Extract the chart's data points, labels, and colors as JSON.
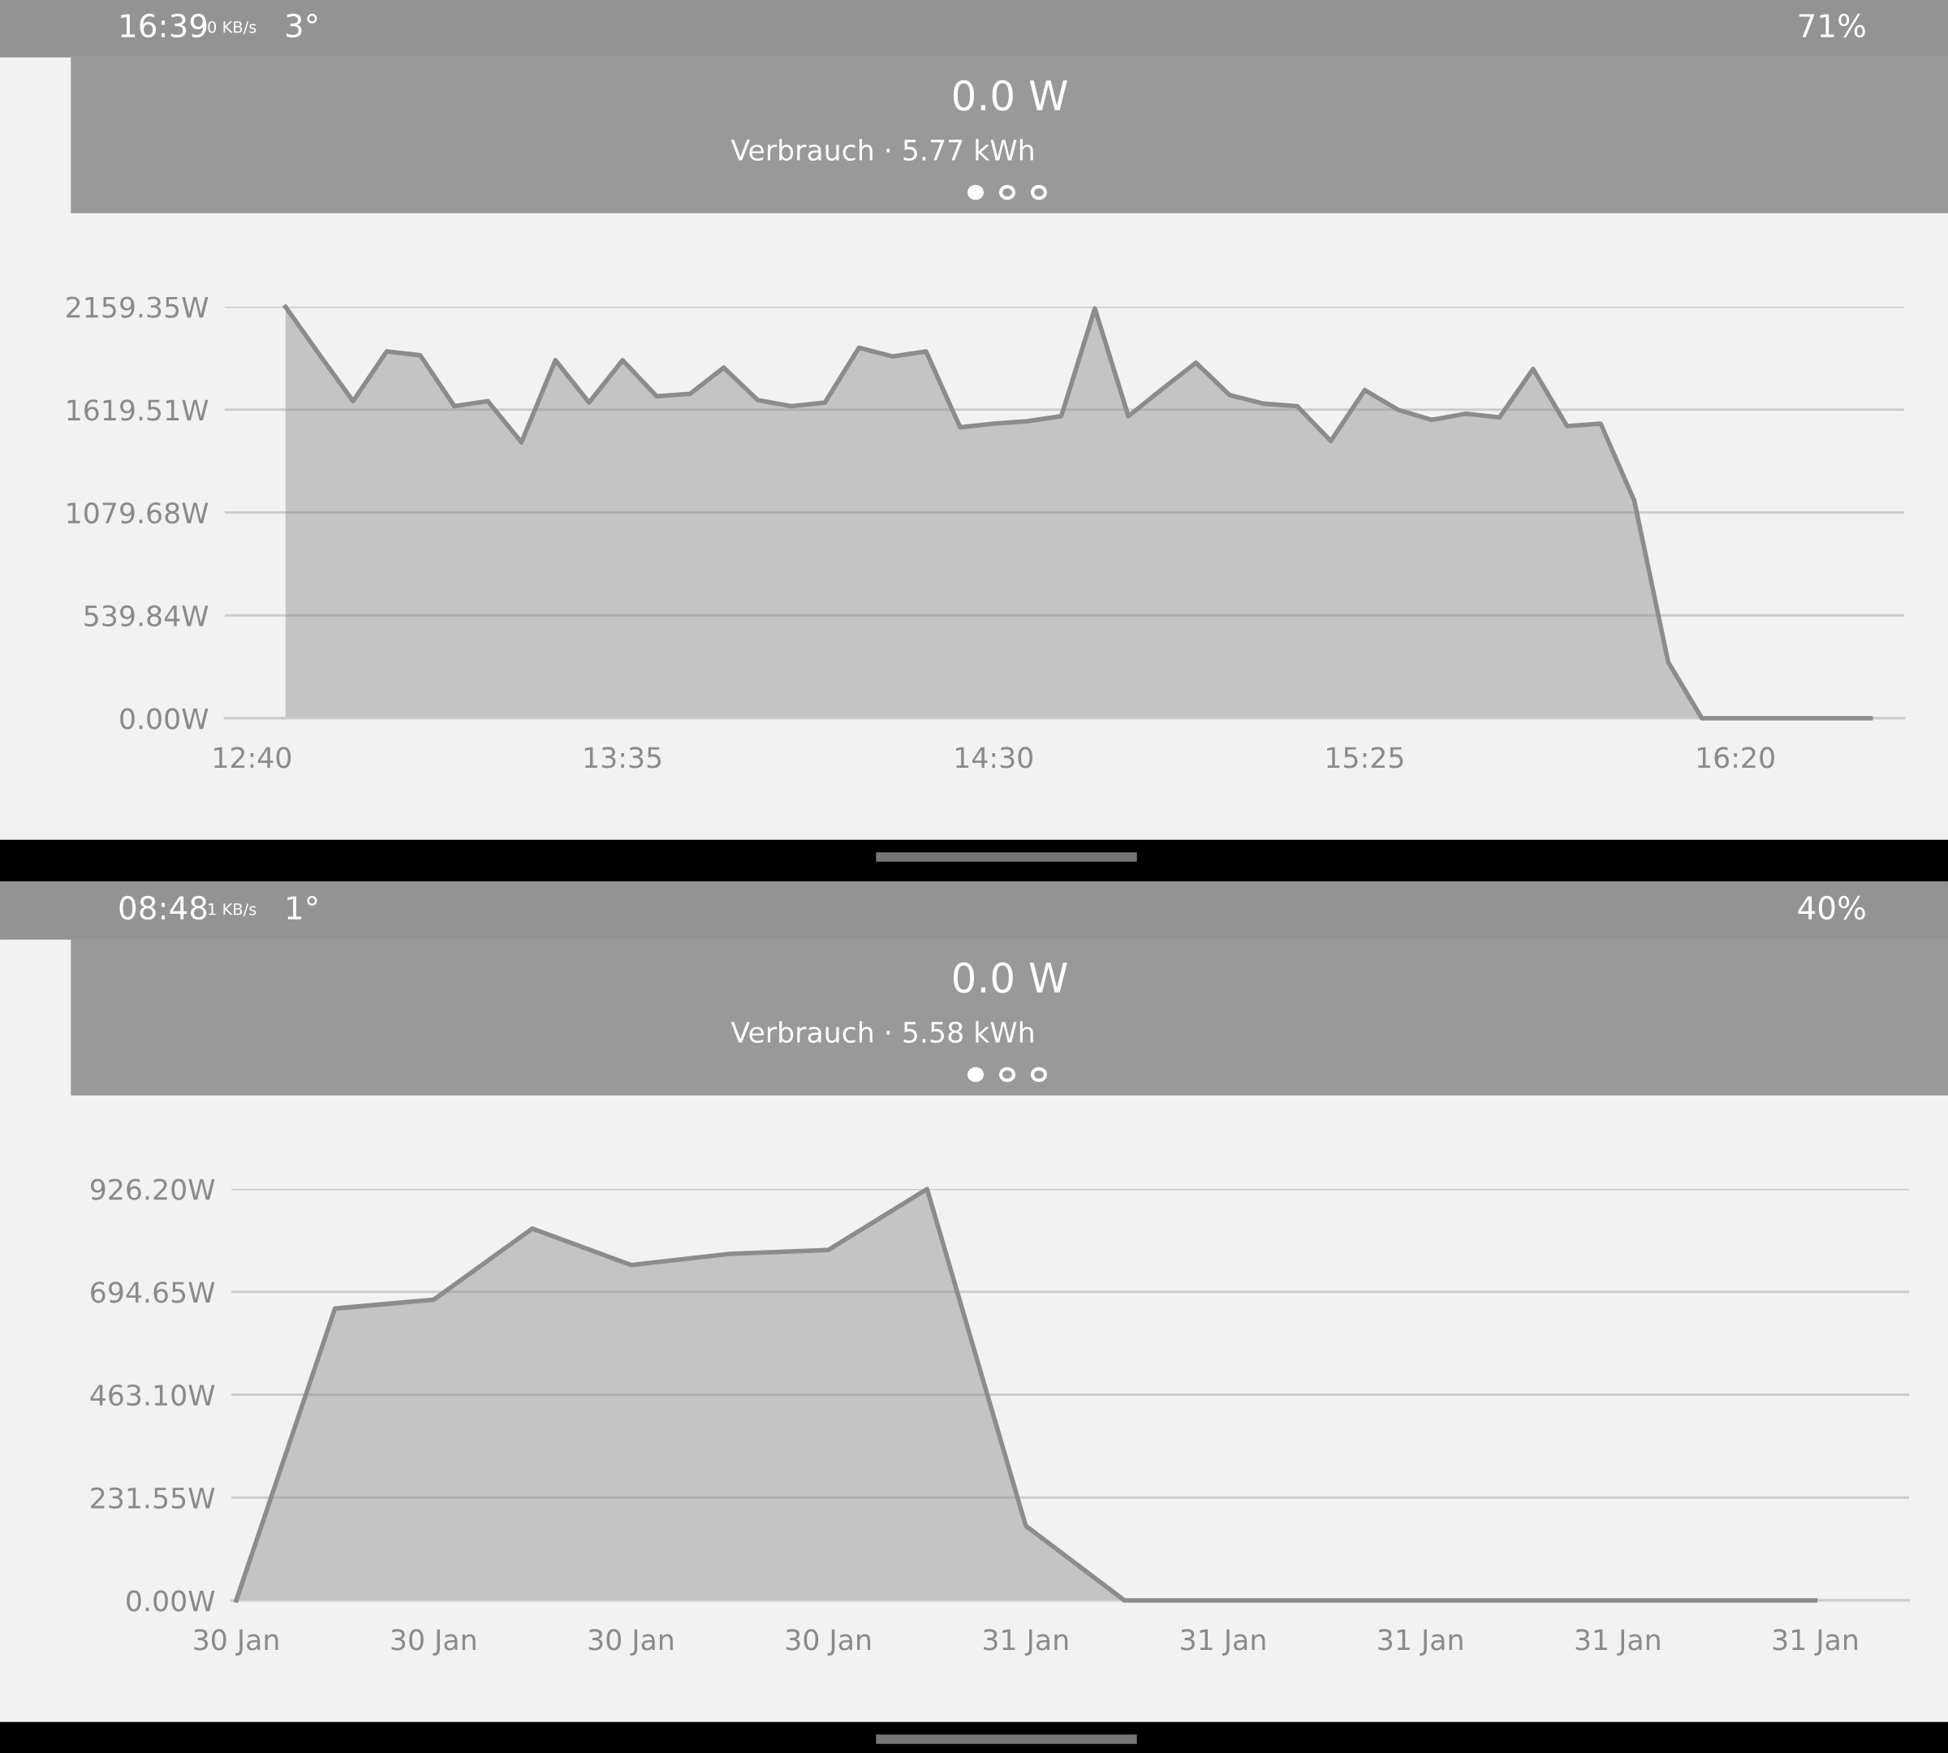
{
  "chart_data": [
    {
      "type": "area",
      "title": "0.0 W",
      "subtitle": "Verbrauch · 5.77 kWh",
      "annotations": [
        "16:39",
        "0 KB/s",
        "3°",
        "71%"
      ],
      "x": [
        12.75,
        12.833,
        12.917,
        13.0,
        13.083,
        13.167,
        13.25,
        13.333,
        13.417,
        13.5,
        13.583,
        13.667,
        13.75,
        13.833,
        13.917,
        14.0,
        14.083,
        14.167,
        14.25,
        14.333,
        14.417,
        14.5,
        14.583,
        14.667,
        14.75,
        14.833,
        14.917,
        15.0,
        15.083,
        15.167,
        15.25,
        15.333,
        15.417,
        15.5,
        15.583,
        15.667,
        15.75,
        15.833,
        15.917,
        16.0,
        16.083,
        16.167,
        16.25,
        16.333,
        16.417,
        16.5,
        16.583,
        16.667
      ],
      "series": [
        {
          "color": "#8c8c8c",
          "values": [
            2159,
            1911,
            1664,
            1925,
            1905,
            1638,
            1664,
            1448,
            1879,
            1657,
            1879,
            1690,
            1703,
            1840,
            1670,
            1638,
            1657,
            1944,
            1899,
            1925,
            1527,
            1546,
            1559,
            1585,
            2150,
            1585,
            1729,
            1866,
            1696,
            1651,
            1638,
            1455,
            1722,
            1618,
            1566,
            1598,
            1579,
            1833,
            1533,
            1546,
            1142,
            294,
            0,
            0,
            0,
            0,
            0,
            0
          ]
        }
      ],
      "xlim": [
        12.6,
        16.75
      ],
      "xticks": [
        {
          "value": 12.667,
          "label": "12:40"
        },
        {
          "value": 13.583,
          "label": "13:35"
        },
        {
          "value": 14.5,
          "label": "14:30"
        },
        {
          "value": 15.417,
          "label": "15:25"
        },
        {
          "value": 16.333,
          "label": "16:20"
        }
      ],
      "ylim": [
        0,
        2159.35
      ],
      "yticks": [
        {
          "value": 0,
          "label": "0.00W"
        },
        {
          "value": 539.84,
          "label": "539.84W"
        },
        {
          "value": 1079.68,
          "label": "1079.68W"
        },
        {
          "value": 1619.51,
          "label": "1619.51W"
        },
        {
          "value": 2159.35,
          "label": "2159.35W"
        }
      ],
      "grid": "y",
      "legend": false,
      "marker": "none"
    },
    {
      "type": "area",
      "title": "0.0 W",
      "subtitle": "Verbrauch · 5.58 kWh",
      "annotations": [
        "08:48",
        "1 KB/s",
        "1°",
        "40%"
      ],
      "categories": [
        "30 Jan",
        null,
        "30 Jan",
        null,
        "30 Jan",
        null,
        "30 Jan",
        null,
        "31 Jan",
        null,
        "31 Jan",
        null,
        "31 Jan",
        null,
        "31 Jan",
        null,
        "31 Jan"
      ],
      "series": [
        {
          "color": "#8c8c8c",
          "values": [
            0,
            657,
            677,
            837,
            755,
            780,
            789,
            926,
            168,
            0,
            0,
            0,
            0,
            0,
            0,
            0,
            0
          ]
        }
      ],
      "ylim": [
        0,
        926.2
      ],
      "yticks": [
        {
          "value": 0,
          "label": "0.00W"
        },
        {
          "value": 231.55,
          "label": "231.55W"
        },
        {
          "value": 463.1,
          "label": "463.10W"
        },
        {
          "value": 694.65,
          "label": "694.65W"
        },
        {
          "value": 926.2,
          "label": "926.20W"
        }
      ],
      "grid": "y",
      "legend": false,
      "marker": "none"
    }
  ]
}
